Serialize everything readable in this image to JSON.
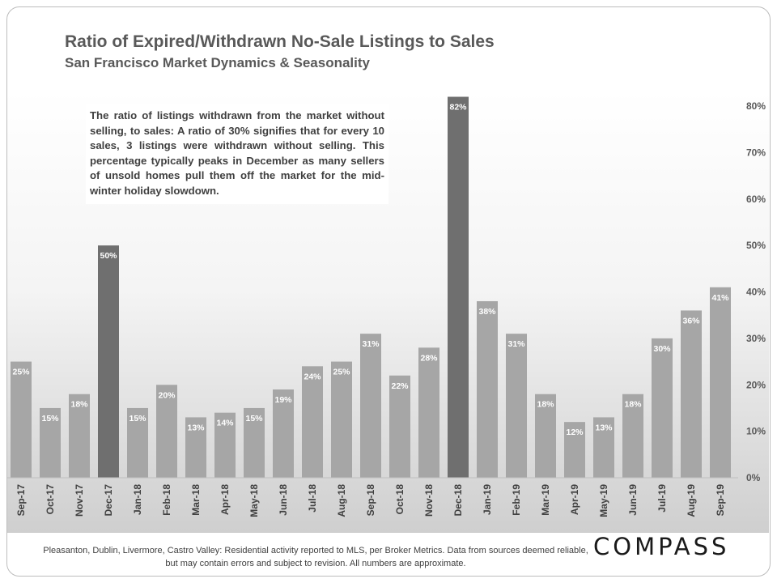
{
  "title": "Ratio of Expired/Withdrawn No-Sale Listings to Sales",
  "subtitle": "San Francisco Market Dynamics & Seasonality",
  "note": "The ratio of listings withdrawn from the market without selling, to sales: A ratio of 30% signifies that for every 10 sales, 3 listings were withdrawn without selling. This percentage typically peaks in December as many sellers of unsold homes pull them off the market for the mid-winter holiday slowdown.",
  "footer": "Pleasanton, Dublin, Livermore, Castro Valley: Residential activity reported to MLS, per Broker Metrics. Data from sources deemed reliable, but may contain errors and subject to revision. All numbers are approximate.",
  "logo": "COMPASS",
  "chart_data": {
    "type": "bar",
    "categories": [
      "Sep-17",
      "Oct-17",
      "Nov-17",
      "Dec-17",
      "Jan-18",
      "Feb-18",
      "Mar-18",
      "Apr-18",
      "May-18",
      "Jun-18",
      "Jul-18",
      "Aug-18",
      "Sep-18",
      "Oct-18",
      "Nov-18",
      "Dec-18",
      "Jan-19",
      "Feb-19",
      "Mar-19",
      "Apr-19",
      "May-19",
      "Jun-19",
      "Jul-19",
      "Aug-19",
      "Sep-19"
    ],
    "values": [
      25,
      15,
      18,
      50,
      15,
      20,
      13,
      14,
      15,
      19,
      24,
      25,
      31,
      22,
      28,
      82,
      38,
      31,
      18,
      12,
      13,
      18,
      30,
      36,
      41
    ],
    "highlight_categories": [
      "Dec-17",
      "Dec-18"
    ],
    "ylim": [
      0,
      80
    ],
    "yticks": [
      "0%",
      "10%",
      "20%",
      "30%",
      "40%",
      "50%",
      "60%",
      "70%",
      "80%"
    ],
    "yaxis_position": "right",
    "grid": false,
    "bar_color": "#a6a6a6",
    "highlight_color": "#6f6f6f"
  }
}
